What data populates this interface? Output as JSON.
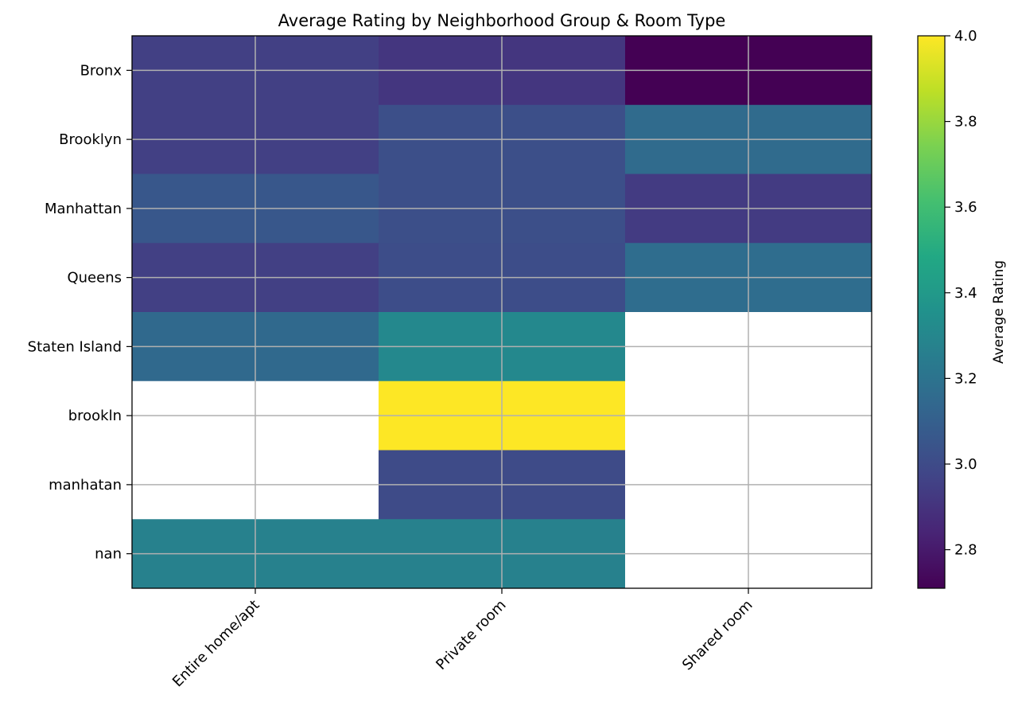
{
  "chart_data": {
    "type": "heatmap",
    "title": "Average Rating by Neighborhood Group & Room Type",
    "xlabel": "",
    "ylabel": "",
    "x_categories": [
      "Entire home/apt",
      "Private room",
      "Shared room"
    ],
    "y_categories": [
      "Bronx",
      "Brooklyn",
      "Manhattan",
      "Queens",
      "Staten Island",
      "brookln",
      "manhatan",
      "nan"
    ],
    "values": [
      [
        2.95,
        2.91,
        2.71
      ],
      [
        2.95,
        3.02,
        3.16
      ],
      [
        3.06,
        3.02,
        2.93
      ],
      [
        2.95,
        3.01,
        3.17
      ],
      [
        3.15,
        3.31,
        null
      ],
      [
        null,
        4.0,
        null
      ],
      [
        null,
        3.0,
        null
      ],
      [
        3.27,
        3.27,
        null
      ]
    ],
    "colormap": "viridis",
    "vmin": 2.71,
    "vmax": 4.0,
    "grid": true,
    "colorbar": {
      "label": "Average Rating",
      "ticks": [
        "2.8",
        "3.0",
        "3.2",
        "3.4",
        "3.6",
        "3.8",
        "4.0"
      ]
    },
    "missing_color": "#ffffff"
  }
}
